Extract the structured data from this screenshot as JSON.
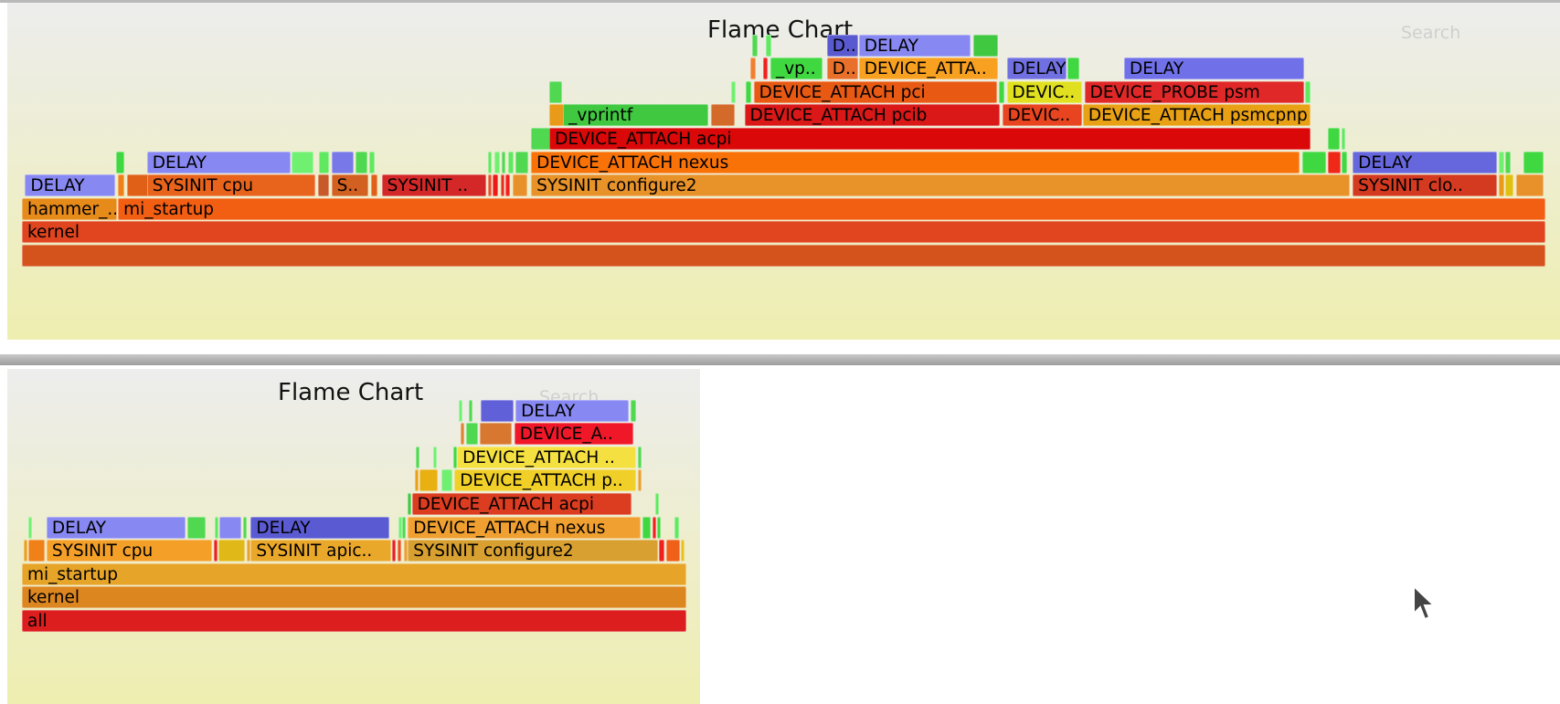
{
  "colors": {
    "bg_top": "#ededed",
    "bg_bottom": "#eeeeb0",
    "title_color": "#111111",
    "search_color": "#cfcfcf"
  },
  "cursor_icon": "mouse-pointer-icon",
  "chart_data": [
    {
      "type": "flamegraph",
      "title": "Flame Chart",
      "search_placeholder": "Search",
      "x_unit": "percent of total samples",
      "frames": [
        {
          "label": "",
          "depth": 0,
          "start": 0,
          "width": 100,
          "color": "#d4521b"
        },
        {
          "label": "kernel",
          "depth": 1,
          "start": 0,
          "width": 100,
          "color": "#e0451f"
        },
        {
          "label": "hammer_..",
          "depth": 2,
          "start": 0,
          "width": 6.3,
          "color": "#e68a1a"
        },
        {
          "label": "mi_startup",
          "depth": 2,
          "start": 6.3,
          "width": 93.7,
          "color": "#f25e12"
        },
        {
          "label": "DELAY",
          "depth": 3,
          "start": 0.2,
          "width": 6.0,
          "color": "#8888f2"
        },
        {
          "label": "",
          "depth": 3,
          "start": 6.3,
          "width": 0.5,
          "color": "#f08018"
        },
        {
          "label": "",
          "depth": 3,
          "start": 6.9,
          "width": 1.5,
          "color": "#e06018"
        },
        {
          "label": "SYSINIT cpu",
          "depth": 3,
          "start": 8.2,
          "width": 11.1,
          "color": "#e8631c"
        },
        {
          "label": "",
          "depth": 3,
          "start": 19.4,
          "width": 0.8,
          "color": "#c85a2a"
        },
        {
          "label": "S..",
          "depth": 3,
          "start": 20.3,
          "width": 2.5,
          "color": "#d26020"
        },
        {
          "label": "",
          "depth": 3,
          "start": 22.9,
          "width": 0.5,
          "color": "#e06018"
        },
        {
          "label": "SYSINIT ..",
          "depth": 3,
          "start": 23.6,
          "width": 6.9,
          "color": "#d42828"
        },
        {
          "label": "",
          "depth": 3,
          "start": 30.6,
          "width": 0.3,
          "color": "#e6502a"
        },
        {
          "label": "",
          "depth": 3,
          "start": 30.9,
          "width": 0.4,
          "color": "#f01818"
        },
        {
          "label": "",
          "depth": 3,
          "start": 31.4,
          "width": 0.3,
          "color": "#e83020"
        },
        {
          "label": "",
          "depth": 3,
          "start": 31.7,
          "width": 0.4,
          "color": "#f02020"
        },
        {
          "label": "",
          "depth": 3,
          "start": 32.2,
          "width": 1.0,
          "color": "#e8902a"
        },
        {
          "label": "SYSINIT configure2",
          "depth": 3,
          "start": 33.4,
          "width": 53.8,
          "color": "#e8922a"
        },
        {
          "label": "SYSINIT clo..",
          "depth": 3,
          "start": 87.3,
          "width": 9.5,
          "color": "#d43a20"
        },
        {
          "label": "",
          "depth": 3,
          "start": 96.9,
          "width": 0.4,
          "color": "#e89a18"
        },
        {
          "label": "",
          "depth": 3,
          "start": 97.3,
          "width": 0.6,
          "color": "#e0c010"
        },
        {
          "label": "",
          "depth": 3,
          "start": 98.0,
          "width": 1.9,
          "color": "#e8902a"
        },
        {
          "label": "",
          "depth": 4,
          "start": 6.2,
          "width": 0.6,
          "color": "#40d840"
        },
        {
          "label": "DELAY",
          "depth": 4,
          "start": 8.2,
          "width": 9.5,
          "color": "#8888f2"
        },
        {
          "label": "",
          "depth": 4,
          "start": 17.7,
          "width": 1.5,
          "color": "#70f070"
        },
        {
          "label": "",
          "depth": 4,
          "start": 19.5,
          "width": 0.7,
          "color": "#60e860"
        },
        {
          "label": "",
          "depth": 4,
          "start": 20.3,
          "width": 1.5,
          "color": "#7878e8"
        },
        {
          "label": "",
          "depth": 4,
          "start": 21.9,
          "width": 0.8,
          "color": "#50d850"
        },
        {
          "label": "",
          "depth": 4,
          "start": 22.8,
          "width": 0.4,
          "color": "#60e860"
        },
        {
          "label": "",
          "depth": 4,
          "start": 30.6,
          "width": 0.3,
          "color": "#60e860"
        },
        {
          "label": "",
          "depth": 4,
          "start": 31.0,
          "width": 0.4,
          "color": "#70f070"
        },
        {
          "label": "",
          "depth": 4,
          "start": 31.5,
          "width": 0.3,
          "color": "#50d850"
        },
        {
          "label": "",
          "depth": 4,
          "start": 31.9,
          "width": 0.4,
          "color": "#60e860"
        },
        {
          "label": "",
          "depth": 4,
          "start": 32.4,
          "width": 0.9,
          "color": "#50d850"
        },
        {
          "label": "DEVICE_ATTACH nexus",
          "depth": 4,
          "start": 33.4,
          "width": 50.5,
          "color": "#f87208"
        },
        {
          "label": "",
          "depth": 4,
          "start": 84.0,
          "width": 1.6,
          "color": "#40d840"
        },
        {
          "label": "",
          "depth": 4,
          "start": 85.7,
          "width": 0.9,
          "color": "#f02818"
        },
        {
          "label": "",
          "depth": 4,
          "start": 86.6,
          "width": 0.4,
          "color": "#40d840"
        },
        {
          "label": "DELAY",
          "depth": 4,
          "start": 87.3,
          "width": 9.5,
          "color": "#6666dd"
        },
        {
          "label": "",
          "depth": 4,
          "start": 96.9,
          "width": 0.4,
          "color": "#70f070"
        },
        {
          "label": "",
          "depth": 4,
          "start": 97.3,
          "width": 0.4,
          "color": "#50d850"
        },
        {
          "label": "",
          "depth": 4,
          "start": 98.5,
          "width": 1.4,
          "color": "#40d840"
        },
        {
          "label": "",
          "depth": 5,
          "start": 33.4,
          "width": 1.3,
          "color": "#50d850"
        },
        {
          "label": "DEVICE_ATTACH acpi",
          "depth": 5,
          "start": 34.6,
          "width": 50.0,
          "color": "#da0808"
        },
        {
          "label": "",
          "depth": 5,
          "start": 85.7,
          "width": 0.8,
          "color": "#40d840"
        },
        {
          "label": "",
          "depth": 5,
          "start": 86.6,
          "width": 0.3,
          "color": "#60e860"
        },
        {
          "label": "",
          "depth": 6,
          "start": 34.6,
          "width": 1.0,
          "color": "#e89a18"
        },
        {
          "label": "_vprintf",
          "depth": 6,
          "start": 35.5,
          "width": 9.6,
          "color": "#40c840"
        },
        {
          "label": "",
          "depth": 6,
          "start": 45.2,
          "width": 1.6,
          "color": "#d46a2a"
        },
        {
          "label": "DEVICE_ATTACH pcib",
          "depth": 6,
          "start": 47.4,
          "width": 16.8,
          "color": "#da1818"
        },
        {
          "label": "DEVIC..",
          "depth": 6,
          "start": 64.3,
          "width": 5.3,
          "color": "#e84420"
        },
        {
          "label": "DEVICE_ATTACH psmcpnp",
          "depth": 6,
          "start": 69.6,
          "width": 15.0,
          "color": "#e8a014"
        },
        {
          "label": "",
          "depth": 7,
          "start": 34.6,
          "width": 0.9,
          "color": "#50d850"
        },
        {
          "label": "",
          "depth": 7,
          "start": 46.5,
          "width": 0.4,
          "color": "#70f070"
        },
        {
          "label": "",
          "depth": 7,
          "start": 47.5,
          "width": 0.4,
          "color": "#40d840"
        },
        {
          "label": "DEVICE_ATTACH pci",
          "depth": 7,
          "start": 48.0,
          "width": 16.0,
          "color": "#e85a14"
        },
        {
          "label": "",
          "depth": 7,
          "start": 64.1,
          "width": 0.4,
          "color": "#40d840"
        },
        {
          "label": "DEVIC..",
          "depth": 7,
          "start": 64.6,
          "width": 5.0,
          "color": "#e0e020"
        },
        {
          "label": "DEVICE_PROBE psm",
          "depth": 7,
          "start": 69.7,
          "width": 14.5,
          "color": "#e02828"
        },
        {
          "label": "",
          "depth": 7,
          "start": 84.2,
          "width": 0.4,
          "color": "#60e860"
        },
        {
          "label": "",
          "depth": 8,
          "start": 47.8,
          "width": 0.4,
          "color": "#f08030"
        },
        {
          "label": "",
          "depth": 8,
          "start": 48.6,
          "width": 0.4,
          "color": "#f02020"
        },
        {
          "label": "_vp..",
          "depth": 8,
          "start": 49.1,
          "width": 3.5,
          "color": "#40d840"
        },
        {
          "label": "D..",
          "depth": 8,
          "start": 52.8,
          "width": 2.1,
          "color": "#e8702a"
        },
        {
          "label": "DEVICE_ATTA..",
          "depth": 8,
          "start": 54.9,
          "width": 9.2,
          "color": "#f8a020"
        },
        {
          "label": "DELAY",
          "depth": 8,
          "start": 64.6,
          "width": 4.0,
          "color": "#7070e0"
        },
        {
          "label": "",
          "depth": 8,
          "start": 68.6,
          "width": 0.8,
          "color": "#40d840"
        },
        {
          "label": "DELAY",
          "depth": 8,
          "start": 72.3,
          "width": 11.9,
          "color": "#7070e8"
        },
        {
          "label": "",
          "depth": 9,
          "start": 47.9,
          "width": 0.4,
          "color": "#50d850"
        },
        {
          "label": "",
          "depth": 9,
          "start": 48.8,
          "width": 0.4,
          "color": "#60e860"
        },
        {
          "label": "D..",
          "depth": 9,
          "start": 52.8,
          "width": 2.1,
          "color": "#5a5ad0"
        },
        {
          "label": "DELAY",
          "depth": 9,
          "start": 54.9,
          "width": 7.4,
          "color": "#8888f2"
        },
        {
          "label": "",
          "depth": 9,
          "start": 62.4,
          "width": 1.7,
          "color": "#40c840"
        }
      ]
    },
    {
      "type": "flamegraph",
      "title": "Flame Chart",
      "search_placeholder": "Search",
      "x_unit": "percent of total samples",
      "frames": [
        {
          "label": "all",
          "depth": 0,
          "start": 0,
          "width": 100,
          "color": "#dc1e1e"
        },
        {
          "label": "kernel",
          "depth": 1,
          "start": 0,
          "width": 100,
          "color": "#dc8620"
        },
        {
          "label": "mi_startup",
          "depth": 2,
          "start": 0,
          "width": 100,
          "color": "#e6a428"
        },
        {
          "label": "",
          "depth": 3,
          "start": 0.3,
          "width": 0.5,
          "color": "#e8a018"
        },
        {
          "label": "",
          "depth": 3,
          "start": 0.9,
          "width": 2.7,
          "color": "#f08018"
        },
        {
          "label": "SYSINIT cpu",
          "depth": 3,
          "start": 3.7,
          "width": 25.0,
          "color": "#f4a028"
        },
        {
          "label": "",
          "depth": 3,
          "start": 28.8,
          "width": 0.6,
          "color": "#e82020"
        },
        {
          "label": "",
          "depth": 3,
          "start": 29.5,
          "width": 4.2,
          "color": "#e0b818"
        },
        {
          "label": "",
          "depth": 3,
          "start": 33.8,
          "width": 0.6,
          "color": "#e8a030"
        },
        {
          "label": "SYSINIT apic..",
          "depth": 3,
          "start": 34.4,
          "width": 21.2,
          "color": "#eaa82a"
        },
        {
          "label": "",
          "depth": 3,
          "start": 55.7,
          "width": 0.6,
          "color": "#e82020"
        },
        {
          "label": "",
          "depth": 3,
          "start": 56.4,
          "width": 0.8,
          "color": "#e85020"
        },
        {
          "label": "",
          "depth": 3,
          "start": 57.4,
          "width": 0.6,
          "color": "#e8a030"
        },
        {
          "label": "SYSINIT configure2",
          "depth": 3,
          "start": 58.0,
          "width": 37.7,
          "color": "#d8a030"
        },
        {
          "label": "",
          "depth": 3,
          "start": 95.8,
          "width": 0.9,
          "color": "#f02020"
        },
        {
          "label": "",
          "depth": 3,
          "start": 96.8,
          "width": 2.2,
          "color": "#f06018"
        },
        {
          "label": "",
          "depth": 3,
          "start": 99.1,
          "width": 0.5,
          "color": "#e8c020"
        },
        {
          "label": "",
          "depth": 4,
          "start": 0.9,
          "width": 0.3,
          "color": "#70f070"
        },
        {
          "label": "DELAY",
          "depth": 4,
          "start": 3.7,
          "width": 21.0,
          "color": "#8888f2"
        },
        {
          "label": "",
          "depth": 4,
          "start": 24.8,
          "width": 3.0,
          "color": "#50d850"
        },
        {
          "label": "",
          "depth": 4,
          "start": 29.0,
          "width": 0.4,
          "color": "#60e860"
        },
        {
          "label": "",
          "depth": 4,
          "start": 29.7,
          "width": 3.4,
          "color": "#8888f2"
        },
        {
          "label": "",
          "depth": 4,
          "start": 33.3,
          "width": 0.4,
          "color": "#50d850"
        },
        {
          "label": "DELAY",
          "depth": 4,
          "start": 34.4,
          "width": 21.0,
          "color": "#5a5ad2"
        },
        {
          "label": "",
          "depth": 4,
          "start": 56.6,
          "width": 0.4,
          "color": "#70f070"
        },
        {
          "label": "",
          "depth": 4,
          "start": 57.1,
          "width": 0.6,
          "color": "#50d850"
        },
        {
          "label": "DEVICE_ATTACH nexus",
          "depth": 4,
          "start": 58.0,
          "width": 35.2,
          "color": "#f0a030"
        },
        {
          "label": "",
          "depth": 4,
          "start": 93.3,
          "width": 1.4,
          "color": "#40d840"
        },
        {
          "label": "",
          "depth": 4,
          "start": 94.8,
          "width": 0.6,
          "color": "#f02020"
        },
        {
          "label": "",
          "depth": 4,
          "start": 95.5,
          "width": 0.5,
          "color": "#40d840"
        },
        {
          "label": "",
          "depth": 4,
          "start": 98.1,
          "width": 0.8,
          "color": "#60e860"
        },
        {
          "label": "",
          "depth": 5,
          "start": 58.0,
          "width": 0.6,
          "color": "#40c840"
        },
        {
          "label": "DEVICE_ATTACH acpi",
          "depth": 5,
          "start": 58.6,
          "width": 33.2,
          "color": "#dc3c20"
        },
        {
          "label": "",
          "depth": 5,
          "start": 95.2,
          "width": 0.4,
          "color": "#60e860"
        },
        {
          "label": "",
          "depth": 6,
          "start": 59.1,
          "width": 0.6,
          "color": "#e8a018"
        },
        {
          "label": "",
          "depth": 6,
          "start": 59.8,
          "width": 2.9,
          "color": "#e8b010"
        },
        {
          "label": "",
          "depth": 6,
          "start": 63.0,
          "width": 1.8,
          "color": "#70f070"
        },
        {
          "label": "DEVICE_ATTACH p..",
          "depth": 6,
          "start": 65.0,
          "width": 27.5,
          "color": "#f0d028"
        },
        {
          "label": "",
          "depth": 6,
          "start": 92.6,
          "width": 0.4,
          "color": "#e8a030"
        },
        {
          "label": "",
          "depth": 7,
          "start": 59.2,
          "width": 0.4,
          "color": "#50d850"
        },
        {
          "label": "",
          "depth": 7,
          "start": 61.8,
          "width": 0.4,
          "color": "#70f070"
        },
        {
          "label": "",
          "depth": 7,
          "start": 64.9,
          "width": 0.4,
          "color": "#40d840"
        },
        {
          "label": "DEVICE_ATTACH ..",
          "depth": 7,
          "start": 65.4,
          "width": 27.1,
          "color": "#f4e040"
        },
        {
          "label": "",
          "depth": 7,
          "start": 92.6,
          "width": 0.4,
          "color": "#50d850"
        },
        {
          "label": "",
          "depth": 8,
          "start": 65.9,
          "width": 0.4,
          "color": "#e08030"
        },
        {
          "label": "",
          "depth": 8,
          "start": 66.7,
          "width": 2.0,
          "color": "#50d850"
        },
        {
          "label": "",
          "depth": 8,
          "start": 68.8,
          "width": 5.0,
          "color": "#d87830"
        },
        {
          "label": "DEVICE_A..",
          "depth": 8,
          "start": 74.0,
          "width": 18.0,
          "color": "#f01828"
        },
        {
          "label": "",
          "depth": 9,
          "start": 65.7,
          "width": 0.3,
          "color": "#70f070"
        },
        {
          "label": "",
          "depth": 9,
          "start": 67.2,
          "width": 0.3,
          "color": "#50d850"
        },
        {
          "label": "",
          "depth": 9,
          "start": 69.0,
          "width": 5.0,
          "color": "#6060d8"
        },
        {
          "label": "DELAY",
          "depth": 9,
          "start": 74.2,
          "width": 17.2,
          "color": "#8888f2"
        },
        {
          "label": "",
          "depth": 9,
          "start": 91.5,
          "width": 1.0,
          "color": "#50d850"
        }
      ]
    }
  ]
}
